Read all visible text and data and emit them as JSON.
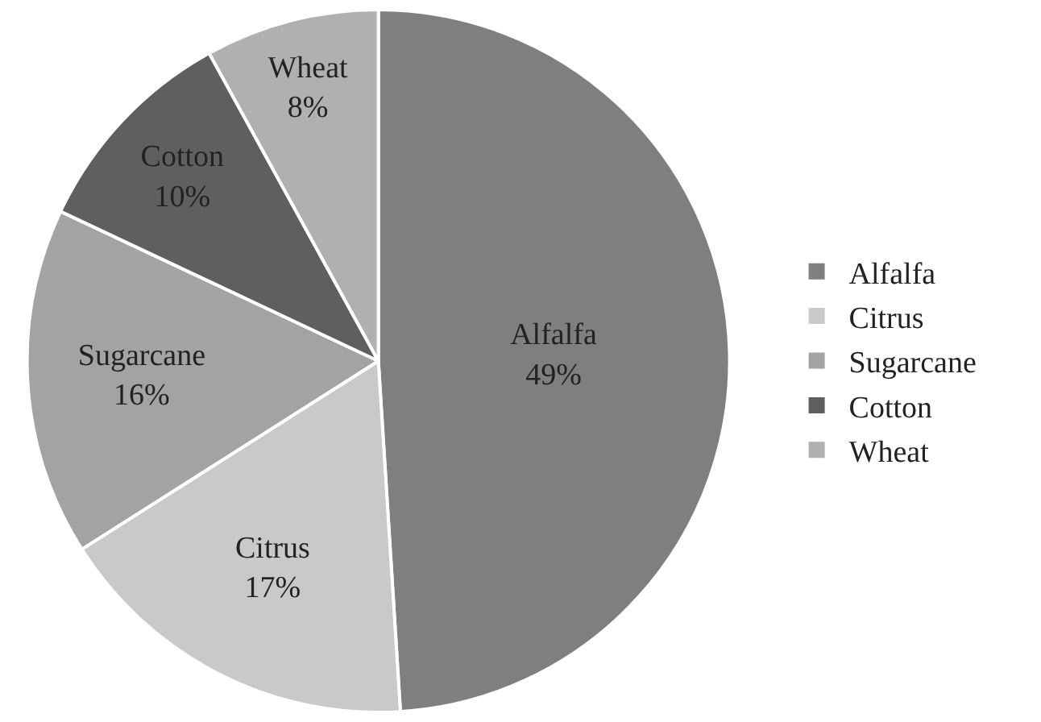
{
  "chart_data": {
    "type": "pie",
    "categories": [
      "Alfalfa",
      "Citrus",
      "Sugarcane",
      "Cotton",
      "Wheat"
    ],
    "values": [
      49,
      17,
      16,
      10,
      8
    ],
    "value_labels": [
      "49%",
      "17%",
      "16%",
      "10%",
      "8%"
    ],
    "colors": [
      "#7f7f7f",
      "#c9c9c9",
      "#a3a3a3",
      "#5f5f5f",
      "#b0b0b0"
    ],
    "legend": "right"
  }
}
